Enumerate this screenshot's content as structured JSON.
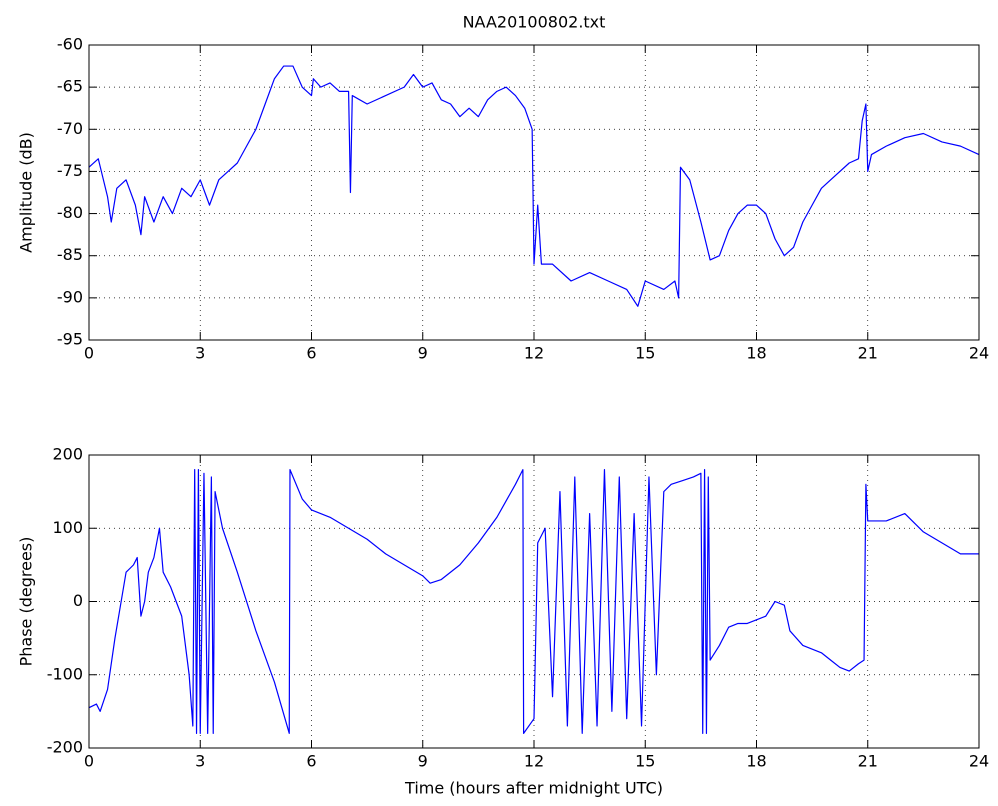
{
  "chart_data": [
    {
      "type": "line",
      "title": "NAA20100802.txt",
      "ylabel": "Amplitude (dB)",
      "x": [
        0,
        0.25,
        0.5,
        0.6,
        0.75,
        1.0,
        1.25,
        1.4,
        1.5,
        1.75,
        2.0,
        2.25,
        2.5,
        2.75,
        3.0,
        3.25,
        3.5,
        3.75,
        4.0,
        4.25,
        4.5,
        4.75,
        5.0,
        5.25,
        5.5,
        5.75,
        6.0,
        6.05,
        6.25,
        6.5,
        6.75,
        7.0,
        7.05,
        7.1,
        7.5,
        8.0,
        8.5,
        8.75,
        9.0,
        9.25,
        9.5,
        9.75,
        10.0,
        10.25,
        10.5,
        10.75,
        11.0,
        11.25,
        11.5,
        11.75,
        11.95,
        12.0,
        12.1,
        12.2,
        12.5,
        13.0,
        13.5,
        14.0,
        14.5,
        14.8,
        15.0,
        15.5,
        15.8,
        15.9,
        15.95,
        16.2,
        16.5,
        16.75,
        17.0,
        17.25,
        17.5,
        17.75,
        18.0,
        18.25,
        18.5,
        18.75,
        19.0,
        19.25,
        19.5,
        19.75,
        20.0,
        20.5,
        20.75,
        20.85,
        20.95,
        21.0,
        21.1,
        21.5,
        22.0,
        22.5,
        23.0,
        23.5,
        24.0
      ],
      "series": [
        {
          "color": "#0000ff",
          "values": [
            -74.5,
            -73.5,
            -78,
            -81,
            -77,
            -76,
            -79,
            -82.5,
            -78,
            -81,
            -78,
            -80,
            -77,
            -78,
            -76,
            -79,
            -76,
            -75,
            -74,
            -72,
            -70,
            -67,
            -64,
            -62.5,
            -62.5,
            -65,
            -66,
            -64,
            -65,
            -64.5,
            -65.5,
            -65.5,
            -77.5,
            -66,
            -67,
            -66,
            -65,
            -63.5,
            -65,
            -64.5,
            -66.5,
            -67,
            -68.5,
            -67.5,
            -68.5,
            -66.5,
            -65.5,
            -65,
            -66,
            -67.5,
            -70,
            -86,
            -79,
            -86,
            -86,
            -88,
            -87,
            -88,
            -89,
            -91,
            -88,
            -89,
            -88,
            -90,
            -74.5,
            -76,
            -81,
            -85.5,
            -85,
            -82,
            -80,
            -79,
            -79,
            -80,
            -83,
            -85,
            -84,
            -81,
            -79,
            -77,
            -76,
            -74,
            -73.5,
            -69,
            -67,
            -75,
            -73,
            -72,
            -71,
            -70.5,
            -71.5,
            -72,
            -73
          ]
        }
      ],
      "xlim": [
        0,
        24
      ],
      "xticks": [
        0,
        3,
        6,
        9,
        12,
        15,
        18,
        21,
        24
      ],
      "ylim": [
        -95,
        -60
      ],
      "yticks": [
        -95,
        -90,
        -85,
        -80,
        -75,
        -70,
        -65,
        -60
      ],
      "grid": true
    },
    {
      "type": "line",
      "xlabel": "Time (hours after midnight UTC)",
      "ylabel": "Phase (degrees)",
      "x": [
        0,
        0.2,
        0.3,
        0.5,
        0.7,
        0.9,
        1.0,
        1.2,
        1.3,
        1.4,
        1.5,
        1.6,
        1.75,
        1.9,
        2.0,
        2.2,
        2.5,
        2.7,
        2.8,
        2.85,
        2.9,
        2.95,
        3.0,
        3.1,
        3.2,
        3.3,
        3.35,
        3.4,
        3.6,
        4.0,
        4.5,
        5.0,
        5.4,
        5.42,
        5.75,
        6.0,
        6.5,
        7.0,
        7.5,
        8.0,
        8.5,
        9.0,
        9.2,
        9.5,
        10.0,
        10.5,
        11.0,
        11.5,
        11.7,
        11.72,
        12.0,
        12.1,
        12.3,
        12.5,
        12.7,
        12.9,
        13.1,
        13.3,
        13.5,
        13.7,
        13.9,
        14.1,
        14.3,
        14.5,
        14.7,
        14.9,
        15.1,
        15.3,
        15.5,
        15.7,
        16.0,
        16.3,
        16.5,
        16.55,
        16.6,
        16.65,
        16.7,
        16.75,
        17.0,
        17.25,
        17.5,
        17.75,
        18.0,
        18.25,
        18.5,
        18.75,
        18.9,
        19.25,
        19.75,
        20.0,
        20.25,
        20.5,
        20.75,
        20.9,
        20.95,
        21.0,
        21.5,
        22.0,
        22.5,
        23.0,
        23.5,
        24.0
      ],
      "series": [
        {
          "color": "#0000ff",
          "values": [
            -145,
            -140,
            -150,
            -120,
            -50,
            10,
            40,
            50,
            60,
            -20,
            0,
            40,
            60,
            100,
            40,
            20,
            -20,
            -100,
            -170,
            180,
            -180,
            180,
            -180,
            175,
            -180,
            170,
            -180,
            150,
            100,
            40,
            -40,
            -110,
            -180,
            180,
            140,
            125,
            115,
            100,
            85,
            65,
            50,
            35,
            25,
            30,
            50,
            80,
            115,
            160,
            180,
            -180,
            -160,
            80,
            100,
            -130,
            150,
            -170,
            170,
            -180,
            120,
            -170,
            180,
            -150,
            170,
            -160,
            120,
            -170,
            170,
            -100,
            150,
            160,
            165,
            170,
            175,
            -180,
            180,
            -180,
            170,
            -80,
            -60,
            -35,
            -30,
            -30,
            -25,
            -20,
            0,
            -5,
            -40,
            -60,
            -70,
            -80,
            -90,
            -95,
            -85,
            -80,
            160,
            110,
            110,
            120,
            95,
            80,
            65,
            65
          ]
        }
      ],
      "xlim": [
        0,
        24
      ],
      "xticks": [
        0,
        3,
        6,
        9,
        12,
        15,
        18,
        21,
        24
      ],
      "ylim": [
        -200,
        200
      ],
      "yticks": [
        -200,
        -100,
        0,
        100,
        200
      ],
      "grid": true
    }
  ]
}
